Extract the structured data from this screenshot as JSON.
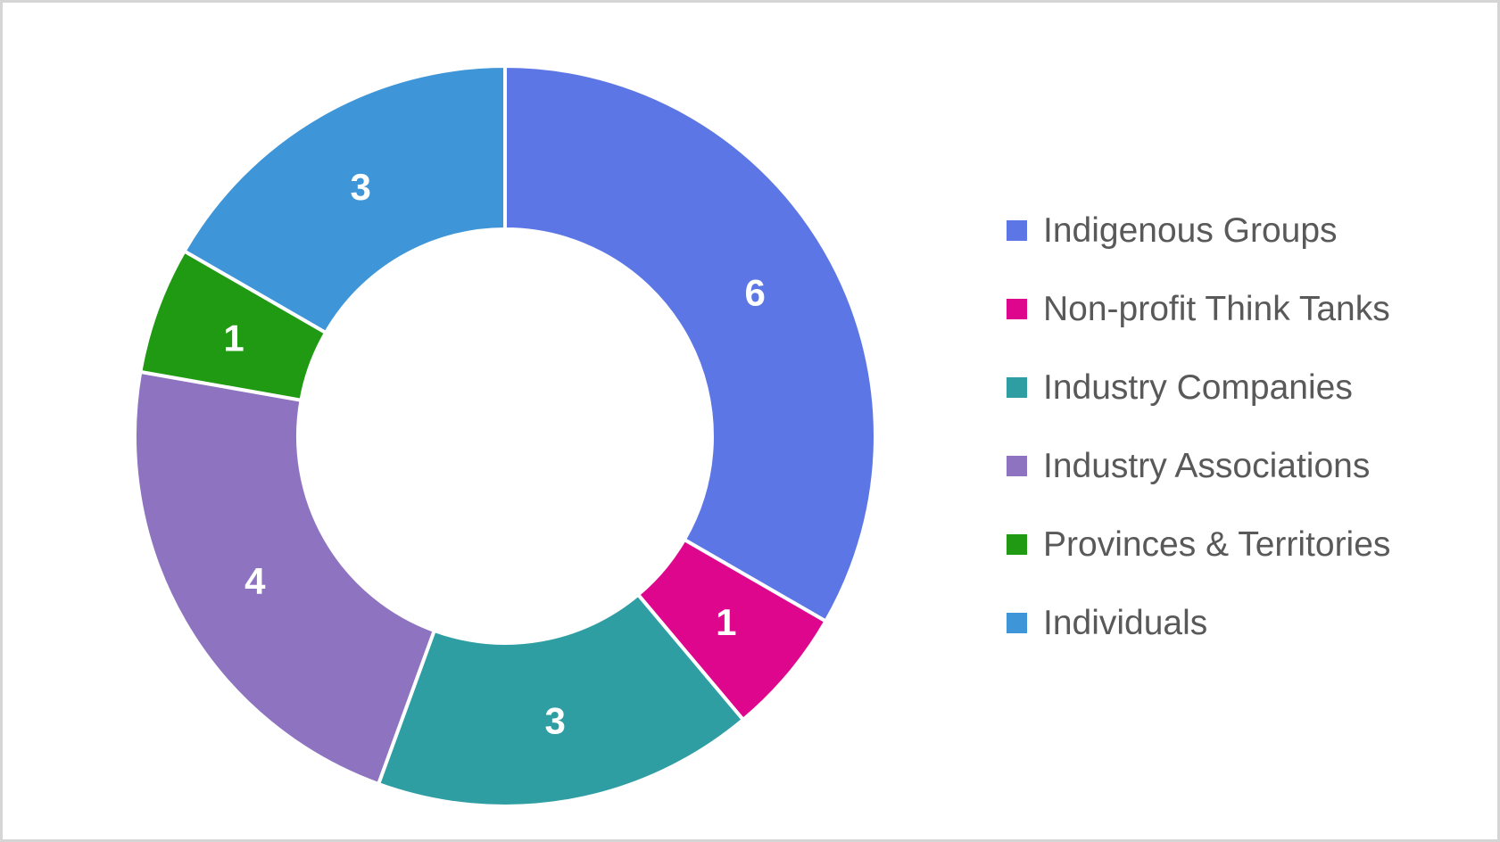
{
  "chart_data": {
    "type": "pie",
    "subtype": "donut",
    "title": "",
    "segments": [
      {
        "label": "Indigenous Groups",
        "value": 6,
        "color": "#5C77E5"
      },
      {
        "label": "Non-profit Think Tanks",
        "value": 1,
        "color": "#DF068E"
      },
      {
        "label": "Industry Companies",
        "value": 3,
        "color": "#2F9EA3"
      },
      {
        "label": "Industry Associations",
        "value": 4,
        "color": "#8E73C0"
      },
      {
        "label": "Provinces & Territories",
        "value": 1,
        "color": "#1F9A12"
      },
      {
        "label": "Individuals",
        "value": 3,
        "color": "#3E96D9"
      }
    ],
    "total": 18,
    "start_angle_deg": 0,
    "direction": "clockwise",
    "donut_hole_ratio": 0.56,
    "data_labels": [
      6,
      1,
      3,
      4,
      1,
      3
    ],
    "data_label_color": "#FFFFFF",
    "slice_border_color": "#FFFFFF",
    "legend_position": "right",
    "legend_text_color": "#595959",
    "canvas_background": "#FFFFFF",
    "canvas_border_color": "#D5D5D5"
  }
}
